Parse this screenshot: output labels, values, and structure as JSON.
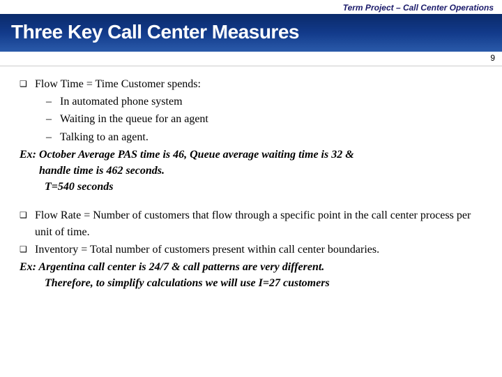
{
  "header": {
    "subtitle": "Term Project – Call Center Operations"
  },
  "title": "Three Key Call Center Measures",
  "page_number": "9",
  "body": {
    "b1_text": "Flow Time = Time Customer spends:",
    "b1_sub1": "In automated phone system",
    "b1_sub2": "Waiting in the queue for an agent",
    "b1_sub3": "Talking to an agent.",
    "ex1_line1": "Ex: October Average PAS time is 46, Queue average waiting time is 32 &",
    "ex1_line2": "handle  time is 462 seconds.",
    "ex1_line3": "T=540 seconds",
    "b2_text": "Flow Rate = Number of customers that flow through a specific point in the call center process per unit of time.",
    "b3_text": "Inventory = Total number of customers present within call center boundaries.",
    "ex2_line1": "Ex: Argentina call center is 24/7 & call patterns are very different.",
    "ex2_line2": "Therefore, to simplify calculations we will use I=27 customers"
  },
  "markers": {
    "square": "❑",
    "dash": "–"
  },
  "colors": {
    "header_text": "#1a1a6a",
    "title_bg_top": "#0a2a6a",
    "title_bg_mid": "#123a8a",
    "title_bg_bot": "#2a5aaa",
    "title_text": "#ffffff",
    "body_text": "#000000"
  }
}
